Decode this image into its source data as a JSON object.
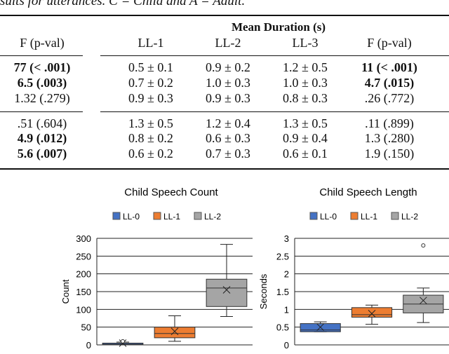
{
  "caption": "sults for utterances. C = Child and A = Adult.",
  "table": {
    "group_header": "Mean Duration (s)",
    "columns": [
      "F (p-val)",
      "LL-1",
      "LL-2",
      "LL-3",
      "F (p-val)"
    ],
    "rows": [
      {
        "f1": "77 (< .001)",
        "f1_bold": true,
        "ll1": "0.5 ± 0.1",
        "ll2": "0.9 ± 0.2",
        "ll3": "1.2 ± 0.5",
        "f2": "11 (< .001)",
        "f2_bold": true
      },
      {
        "f1": "6.5 (.003)",
        "f1_bold": true,
        "ll1": "0.7 ± 0.2",
        "ll2": "1.0 ± 0.3",
        "ll3": "1.0 ± 0.3",
        "f2": "4.7 (.015)",
        "f2_bold": true
      },
      {
        "f1": "1.32 (.279)",
        "f1_bold": false,
        "ll1": "0.9 ± 0.3",
        "ll2": "0.9 ± 0.3",
        "ll3": "0.8 ± 0.3",
        "f2": ".26 (.772)",
        "f2_bold": false
      },
      {
        "f1": ".51 (.604)",
        "f1_bold": false,
        "ll1": "1.3 ± 0.5",
        "ll2": "1.2 ± 0.4",
        "ll3": "1.3 ± 0.5",
        "f2": ".11 (.899)",
        "f2_bold": false
      },
      {
        "f1": "4.9 (.012)",
        "f1_bold": true,
        "ll1": "0.8 ± 0.2",
        "ll2": "0.6 ± 0.3",
        "ll3": "0.9 ± 0.4",
        "f2": "1.3 (.280)",
        "f2_bold": false
      },
      {
        "f1": "5.6 (.007)",
        "f1_bold": true,
        "ll1": "0.6 ± 0.2",
        "ll2": "0.7 ± 0.3",
        "ll3": "0.6 ± 0.1",
        "f2": "1.9 (.150)",
        "f2_bold": false
      }
    ]
  },
  "chart_data": [
    {
      "type": "box",
      "title": "Child Speech Count",
      "ylabel": "Count",
      "ylim": [
        0,
        300
      ],
      "yticks": [
        0,
        50,
        100,
        150,
        200,
        250,
        300
      ],
      "yticklabels": [
        "0",
        "50",
        "100",
        "150",
        "200",
        "250",
        "300"
      ],
      "legend": "top",
      "series": [
        {
          "name": "LL-0",
          "color": "#4472c4",
          "min": 0,
          "q1": 0,
          "median": 2,
          "q3": 5,
          "max": 8,
          "mean": 5,
          "outliers": [
            10
          ]
        },
        {
          "name": "LL-1",
          "color": "#ed7d31",
          "min": 10,
          "q1": 20,
          "median": 32,
          "q3": 50,
          "max": 82,
          "mean": 38,
          "outliers": []
        },
        {
          "name": "LL-2",
          "color": "#a5a5a5",
          "min": 80,
          "q1": 108,
          "median": 160,
          "q3": 185,
          "max": 283,
          "mean": 155,
          "outliers": []
        }
      ]
    },
    {
      "type": "box",
      "title": "Child Speech Length",
      "ylabel": "Seconds",
      "ylim": [
        0,
        3
      ],
      "yticks": [
        0,
        0.5,
        1,
        1.5,
        2,
        2.5,
        3
      ],
      "yticklabels": [
        "0",
        "0.5",
        "1",
        "1.5",
        "2",
        "2.5",
        "3"
      ],
      "legend": "top",
      "series": [
        {
          "name": "LL-0",
          "color": "#4472c4",
          "min": 0.37,
          "q1": 0.37,
          "median": 0.42,
          "q3": 0.6,
          "max": 0.65,
          "mean": 0.5,
          "outliers": []
        },
        {
          "name": "LL-1",
          "color": "#ed7d31",
          "min": 0.58,
          "q1": 0.78,
          "median": 0.85,
          "q3": 1.05,
          "max": 1.12,
          "mean": 0.88,
          "outliers": []
        },
        {
          "name": "LL-2",
          "color": "#a5a5a5",
          "min": 0.63,
          "q1": 0.9,
          "median": 1.15,
          "q3": 1.4,
          "max": 1.6,
          "mean": 1.25,
          "outliers": [
            2.8
          ]
        }
      ]
    }
  ]
}
